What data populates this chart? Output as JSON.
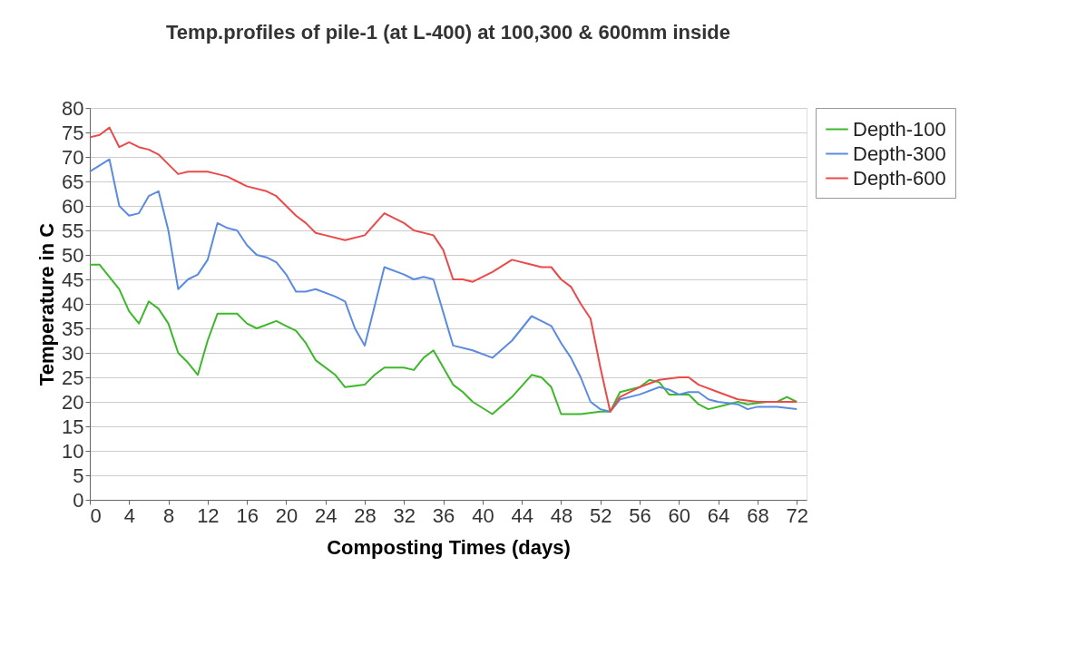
{
  "chart_data": {
    "type": "line",
    "title": "Temp.profiles of pile-1 (at L-400) at 100,300 & 600mm inside",
    "xlabel": "Composting Times (days)",
    "ylabel": "Temperature in C",
    "xlim": [
      0,
      73
    ],
    "xticks": [
      0,
      4,
      8,
      12,
      16,
      20,
      24,
      28,
      32,
      36,
      40,
      44,
      48,
      52,
      56,
      60,
      64,
      68,
      72
    ],
    "ylim": [
      0,
      80
    ],
    "yticks": [
      0,
      5,
      10,
      15,
      20,
      25,
      30,
      35,
      40,
      45,
      50,
      55,
      60,
      65,
      70,
      75,
      80
    ],
    "grid": "y",
    "legend": "right",
    "marker": "none",
    "line_style": "solid",
    "series": [
      {
        "name": "Depth-100",
        "color": "#3cb82a",
        "x": [
          0,
          1,
          2,
          3,
          4,
          5,
          6,
          7,
          8,
          9,
          10,
          11,
          12,
          13,
          15,
          16,
          17,
          19,
          20,
          21,
          22,
          23,
          25,
          26,
          28,
          29,
          30,
          32,
          33,
          34,
          35,
          37,
          38,
          39,
          41,
          43,
          45,
          46,
          47,
          48,
          50,
          52,
          53,
          54,
          56,
          57,
          58,
          59,
          61,
          62,
          63,
          65,
          66,
          67,
          69,
          70,
          71,
          72
        ],
        "values": [
          48,
          48,
          45.5,
          43,
          38.5,
          36,
          40.5,
          39,
          36,
          30,
          28,
          25.5,
          32.5,
          38,
          38,
          36,
          35,
          36.5,
          35.5,
          34.5,
          32,
          28.5,
          25.5,
          23,
          23.5,
          25.5,
          27,
          27,
          26.5,
          29,
          30.5,
          23.5,
          22,
          20,
          17.5,
          21,
          25.5,
          25,
          23,
          17.5,
          17.5,
          18,
          18,
          22,
          23,
          24.5,
          24,
          21.5,
          21.5,
          19.5,
          18.5,
          19.5,
          20,
          19.5,
          20,
          20,
          21,
          20
        ]
      },
      {
        "name": "Depth-300",
        "color": "#5b8be0",
        "x": [
          0,
          2,
          3,
          4,
          5,
          6,
          7,
          8,
          9,
          10,
          11,
          12,
          13,
          14,
          15,
          16,
          17,
          18,
          19,
          20,
          21,
          22,
          23,
          25,
          26,
          27,
          28,
          30,
          32,
          33,
          34,
          35,
          37,
          39,
          41,
          43,
          45,
          46,
          47,
          48,
          49,
          50,
          51,
          52,
          53,
          54,
          56,
          58,
          59,
          60,
          61,
          62,
          63,
          64,
          66,
          67,
          68,
          70,
          72
        ],
        "values": [
          67,
          69.5,
          60,
          58,
          58.5,
          62,
          63,
          55,
          43,
          45,
          46,
          49,
          56.5,
          55.5,
          55,
          52,
          50,
          49.5,
          48.5,
          46,
          42.5,
          42.5,
          43,
          41.5,
          40.5,
          35,
          31.5,
          47.5,
          46,
          45,
          45.5,
          45,
          31.5,
          30.5,
          29,
          32.5,
          37.5,
          36.5,
          35.5,
          32,
          29,
          25,
          20,
          18.5,
          18,
          20.5,
          21.5,
          23,
          22.5,
          21.5,
          22,
          22,
          20.5,
          20,
          19.5,
          18.5,
          19,
          19,
          18.5
        ]
      },
      {
        "name": "Depth-600",
        "color": "#ea4a4a",
        "x": [
          0,
          1,
          2,
          3,
          4,
          5,
          6,
          7,
          8,
          9,
          10,
          12,
          13,
          14,
          15,
          16,
          18,
          19,
          20,
          21,
          22,
          23,
          24,
          26,
          28,
          30,
          32,
          33,
          35,
          36,
          37,
          38,
          39,
          41,
          43,
          45,
          46,
          47,
          48,
          49,
          50,
          51,
          52,
          53,
          54,
          56,
          58,
          60,
          61,
          62,
          64,
          66,
          68,
          70,
          72
        ],
        "values": [
          74,
          74.5,
          76,
          72,
          73,
          72,
          71.5,
          70.5,
          68.5,
          66.5,
          67,
          67,
          66.5,
          66,
          65,
          64,
          63,
          62,
          60,
          58,
          56.5,
          54.5,
          54,
          53,
          54,
          58.5,
          56.5,
          55,
          54,
          51,
          45,
          45,
          44.5,
          46.5,
          49,
          48,
          47.5,
          47.5,
          45,
          43.5,
          40,
          37,
          27,
          18,
          21,
          23,
          24.5,
          25,
          25,
          23.5,
          22,
          20.5,
          20,
          20,
          20
        ]
      }
    ]
  }
}
